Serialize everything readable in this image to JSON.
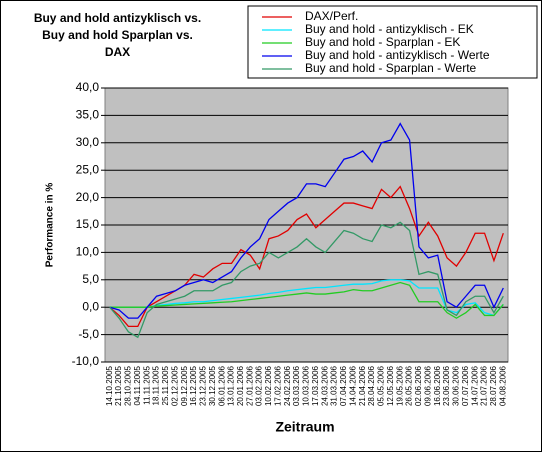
{
  "chart_data": {
    "type": "line",
    "title": [
      "Buy and hold antizyklisch vs.",
      "Buy and hold Sparplan vs.",
      "DAX"
    ],
    "x_label": "Zeitraum",
    "y_label": "Performance in %",
    "categories": [
      "14.10.2005",
      "21.10.2005",
      "28.10.2005",
      "04.11.2005",
      "11.11.2005",
      "18.11.2005",
      "25.11.2005",
      "02.12.2005",
      "09.12.2005",
      "16.12.2005",
      "23.12.2005",
      "30.12.2005",
      "06.01.2006",
      "13.01.2006",
      "20.01.2006",
      "27.01.2006",
      "03.02.2006",
      "10.02.2006",
      "17.02.2006",
      "24.02.2006",
      "03.03.2006",
      "10.03.2006",
      "17.03.2006",
      "24.03.2006",
      "31.03.2006",
      "07.04.2006",
      "14.04.2006",
      "21.04.2006",
      "28.04.2006",
      "05.05.2006",
      "12.05.2006",
      "19.05.2006",
      "26.05.2006",
      "02.06.2006",
      "09.06.2006",
      "16.06.2006",
      "23.06.2006",
      "30.06.2006",
      "07.07.2006",
      "14.07.2006",
      "21.07.2006",
      "28.07.2006",
      "04.08.2006"
    ],
    "series": [
      {
        "name": "DAX/Perf.",
        "color": "#e00000",
        "values": [
          0,
          -1.5,
          -3.5,
          -3.5,
          0,
          1,
          2,
          3,
          4,
          6,
          5.5,
          7,
          8,
          8,
          10.5,
          9.5,
          7,
          12.5,
          13,
          14,
          16,
          17,
          14.5,
          16,
          17.5,
          19,
          19,
          18.5,
          18,
          21.5,
          20,
          22,
          18,
          13,
          15.5,
          13,
          9,
          7.5,
          10,
          13.5,
          13.5,
          8.5,
          13.5
        ]
      },
      {
        "name": "Buy and hold - antizyklisch - EK",
        "color": "#00e5ff",
        "values": [
          0,
          0,
          0,
          0,
          0,
          0.3,
          0.5,
          0.7,
          0.8,
          1,
          1,
          1.2,
          1.4,
          1.6,
          1.8,
          2,
          2.2,
          2.5,
          2.7,
          3,
          3.2,
          3.4,
          3.6,
          3.6,
          3.8,
          4,
          4.2,
          4.2,
          4.3,
          4.8,
          5,
          5,
          4.8,
          3.5,
          3.5,
          3.5,
          -0.5,
          -1,
          0.5,
          0.8,
          -1,
          -1.5,
          0.5
        ]
      },
      {
        "name": "Buy and hold - Sparplan - EK",
        "color": "#22cc22",
        "values": [
          0,
          0,
          0,
          0,
          0,
          0.2,
          0.3,
          0.4,
          0.5,
          0.6,
          0.7,
          0.8,
          0.9,
          1,
          1.2,
          1.4,
          1.6,
          1.8,
          2,
          2.2,
          2.4,
          2.6,
          2.4,
          2.4,
          2.6,
          2.8,
          3.2,
          3,
          3,
          3.5,
          4,
          4.5,
          4,
          1,
          1,
          1,
          -1,
          -2,
          -1,
          0.5,
          -1.5,
          -1.5,
          0.5
        ]
      },
      {
        "name": "Buy and hold - antizyklisch - Werte",
        "color": "#0000ee",
        "values": [
          0,
          -0.5,
          -2,
          -2,
          0,
          2,
          2.5,
          3,
          4,
          4.5,
          5,
          4.5,
          5.5,
          6.5,
          9,
          11,
          12.5,
          16,
          17.5,
          19,
          20,
          22.5,
          22.5,
          22,
          24.5,
          27,
          27.5,
          28.5,
          26.5,
          30,
          30.5,
          33.5,
          30.5,
          11,
          9,
          9.5,
          1,
          0,
          2,
          4,
          4,
          0,
          3.5
        ]
      },
      {
        "name": "Buy and hold - Sparplan - Werte",
        "color": "#339966",
        "values": [
          0,
          -2,
          -4.5,
          -5.5,
          -1,
          0.5,
          1,
          1.5,
          2,
          3,
          3,
          3,
          4,
          4.5,
          6.5,
          7.5,
          8,
          10,
          9,
          10,
          11,
          12.5,
          11,
          10,
          12,
          14,
          13.5,
          12.5,
          12,
          15,
          14.5,
          15.5,
          14,
          6,
          6.5,
          6,
          -0.5,
          -1.5,
          1,
          2,
          2,
          -1,
          2
        ]
      }
    ],
    "ylim": [
      -10,
      40
    ],
    "yticks": [
      {
        "value": -10,
        "label": "-10,0"
      },
      {
        "value": -5,
        "label": "-5,0"
      },
      {
        "value": 0,
        "label": "0,0"
      },
      {
        "value": 5,
        "label": "5,0"
      },
      {
        "value": 10,
        "label": "10,0"
      },
      {
        "value": 15,
        "label": "15,0"
      },
      {
        "value": 20,
        "label": "20,0"
      },
      {
        "value": 25,
        "label": "25,0"
      },
      {
        "value": 30,
        "label": "30,0"
      },
      {
        "value": 35,
        "label": "35,0"
      },
      {
        "value": 40,
        "label": "40,0"
      }
    ],
    "grid": true,
    "legend": "top-right"
  }
}
